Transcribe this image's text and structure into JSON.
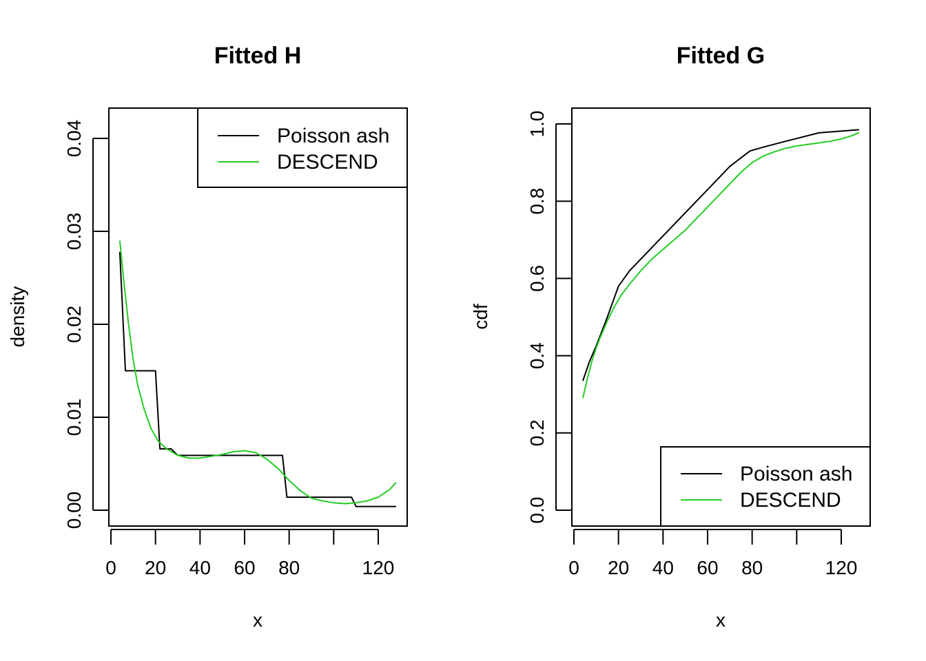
{
  "chart_data": [
    {
      "type": "line",
      "title": "Fitted H",
      "xlabel": "x",
      "ylabel": "density",
      "xlim": [
        0,
        130
      ],
      "ylim": [
        0,
        0.042
      ],
      "xticks": [
        0,
        20,
        40,
        60,
        80,
        100,
        120
      ],
      "xtick_labels": [
        "0",
        "20",
        "40",
        "60",
        "80",
        "",
        "120"
      ],
      "yticks": [
        0,
        0.01,
        0.02,
        0.03,
        0.04
      ],
      "ytick_labels": [
        "0.00",
        "0.01",
        "0.02",
        "0.03",
        "0.04"
      ],
      "legend": {
        "position": "top-right",
        "entries": [
          "Poisson ash",
          "DESCEND"
        ]
      },
      "series": [
        {
          "name": "Poisson ash",
          "color": "#000000",
          "x": [
            4,
            6.5,
            6.5,
            20,
            22,
            22,
            27,
            30,
            30,
            77,
            79,
            79,
            108,
            110,
            110,
            128
          ],
          "y": [
            0.0278,
            0.015,
            0.015,
            0.015,
            0.0066,
            0.0066,
            0.0066,
            0.0059,
            0.0059,
            0.0059,
            0.0014,
            0.0014,
            0.0014,
            0.0004,
            0.0004,
            0.0004
          ]
        },
        {
          "name": "DESCEND",
          "color": "#22cc22",
          "x": [
            4,
            6,
            8,
            10,
            12,
            15,
            18,
            21,
            25,
            30,
            35,
            40,
            45,
            50,
            55,
            60,
            65,
            70,
            75,
            80,
            85,
            90,
            95,
            100,
            105,
            110,
            115,
            120,
            125,
            128
          ],
          "y": [
            0.029,
            0.0242,
            0.0198,
            0.0162,
            0.0135,
            0.0108,
            0.0088,
            0.0075,
            0.0066,
            0.0059,
            0.0056,
            0.0056,
            0.0058,
            0.006,
            0.0063,
            0.0064,
            0.0062,
            0.0055,
            0.0045,
            0.0032,
            0.0021,
            0.0013,
            0.001,
            0.0008,
            0.0007,
            0.0008,
            0.001,
            0.0014,
            0.0022,
            0.003
          ]
        }
      ]
    },
    {
      "type": "line",
      "title": "Fitted G",
      "xlabel": "x",
      "ylabel": "cdf",
      "xlim": [
        0,
        130
      ],
      "ylim": [
        0,
        1.0
      ],
      "xticks": [
        0,
        20,
        40,
        60,
        80,
        100,
        120
      ],
      "xtick_labels": [
        "0",
        "20",
        "40",
        "60",
        "80",
        "",
        "120"
      ],
      "yticks": [
        0,
        0.2,
        0.4,
        0.6,
        0.8,
        1.0
      ],
      "ytick_labels": [
        "0.0",
        "0.2",
        "0.4",
        "0.6",
        "0.8",
        "1.0"
      ],
      "legend": {
        "position": "bottom-right",
        "entries": [
          "Poisson ash",
          "DESCEND"
        ]
      },
      "series": [
        {
          "name": "Poisson ash",
          "color": "#000000",
          "x": [
            4,
            7,
            10,
            15,
            20,
            25,
            30,
            40,
            50,
            60,
            70,
            79,
            85,
            95,
            110,
            128
          ],
          "y": [
            0.335,
            0.385,
            0.425,
            0.5,
            0.58,
            0.62,
            0.65,
            0.71,
            0.77,
            0.83,
            0.89,
            0.93,
            0.94,
            0.955,
            0.977,
            0.985
          ]
        },
        {
          "name": "DESCEND",
          "color": "#22cc22",
          "x": [
            4,
            6,
            8,
            10,
            12,
            15,
            18,
            21,
            25,
            30,
            35,
            40,
            45,
            50,
            55,
            60,
            65,
            70,
            75,
            80,
            85,
            90,
            95,
            100,
            105,
            110,
            115,
            120,
            125,
            128
          ],
          "y": [
            0.29,
            0.34,
            0.385,
            0.42,
            0.45,
            0.49,
            0.525,
            0.555,
            0.585,
            0.62,
            0.65,
            0.675,
            0.7,
            0.725,
            0.755,
            0.785,
            0.815,
            0.845,
            0.875,
            0.9,
            0.917,
            0.928,
            0.937,
            0.943,
            0.947,
            0.951,
            0.955,
            0.961,
            0.97,
            0.978
          ]
        }
      ]
    }
  ]
}
